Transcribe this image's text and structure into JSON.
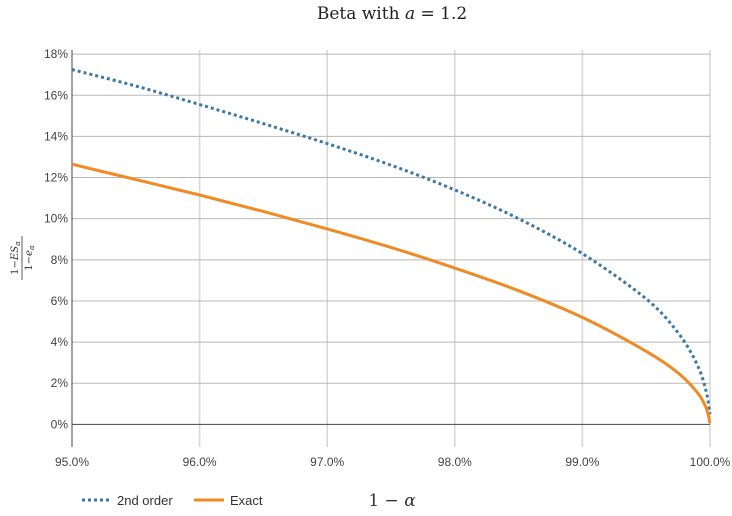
{
  "chart_data": {
    "type": "line",
    "title": "Beta with a = 1.2",
    "title_parts": {
      "prefix": "Beta with ",
      "var": "a",
      "suffix": " = 1.2"
    },
    "xlabel": "1 − α",
    "xlabel_parts": {
      "prefix": "1 − ",
      "var": "α"
    },
    "ylabel": "(1 − ES_α) / (1 − e_α)",
    "ylabel_parts": {
      "numerator": {
        "prefix": "1−",
        "var": "ES",
        "sub": "α"
      },
      "denominator": {
        "prefix": "1−",
        "var": "e",
        "sub": "α"
      }
    },
    "xlim": [
      95.0,
      100.0
    ],
    "ylim": [
      -1.1,
      18.2
    ],
    "x_ticks": [
      95.0,
      96.0,
      97.0,
      98.0,
      99.0,
      100.0
    ],
    "x_tick_labels": [
      "95.0%",
      "96.0%",
      "97.0%",
      "98.0%",
      "99.0%",
      "100.0%"
    ],
    "y_ticks": [
      0,
      2,
      4,
      6,
      8,
      10,
      12,
      14,
      16,
      18
    ],
    "y_tick_labels": [
      "0%",
      "2%",
      "4%",
      "6%",
      "8%",
      "10%",
      "12%",
      "14%",
      "16%",
      "18%"
    ],
    "grid": true,
    "legend_position": "bottom-left",
    "series": [
      {
        "name": "2nd order",
        "color": "#3a78a8",
        "style": "dotted",
        "x": [
          95.0,
          95.5,
          96.0,
          96.5,
          97.0,
          97.5,
          98.0,
          98.5,
          99.0,
          99.5,
          99.75,
          99.9,
          99.97,
          100.0
        ],
        "y": [
          17.25,
          16.45,
          15.55,
          14.62,
          13.65,
          12.6,
          11.4,
          10.0,
          8.3,
          6.1,
          4.45,
          2.9,
          1.6,
          0.5
        ]
      },
      {
        "name": "Exact",
        "color": "#f08a24",
        "style": "solid",
        "x": [
          95.0,
          95.5,
          96.0,
          96.5,
          97.0,
          97.5,
          98.0,
          98.5,
          99.0,
          99.5,
          99.75,
          99.9,
          99.97,
          100.0
        ],
        "y": [
          12.65,
          11.9,
          11.15,
          10.35,
          9.5,
          8.6,
          7.6,
          6.5,
          5.2,
          3.55,
          2.5,
          1.55,
          0.8,
          0.05
        ]
      }
    ]
  }
}
